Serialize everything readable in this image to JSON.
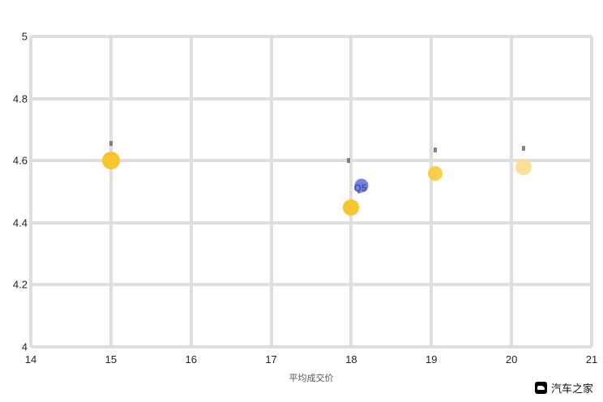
{
  "chart_data": {
    "type": "scatter",
    "title": "",
    "xlabel": "平均成交价",
    "ylabel": "",
    "xlim": [
      14,
      21
    ],
    "ylim": [
      4,
      5
    ],
    "x_ticks": [
      14,
      15,
      16,
      17,
      18,
      19,
      20,
      21
    ],
    "y_ticks": [
      5,
      4.8,
      4.6,
      4.4,
      4.2,
      4
    ],
    "grid": true,
    "legend": "none",
    "points": [
      {
        "x": 15.0,
        "y": 4.6,
        "color": "#F7C52D",
        "size": 22,
        "label": "",
        "label_color": ""
      },
      {
        "x": 18.0,
        "y": 4.45,
        "color": "#F7C52D",
        "size": 20,
        "label": "",
        "label_color": ""
      },
      {
        "x": 18.13,
        "y": 4.52,
        "color": "#7583DE",
        "size": 17,
        "label": "Q5",
        "label_color": "#4150B5"
      },
      {
        "x": 19.05,
        "y": 4.56,
        "color": "#FACD4B",
        "size": 18,
        "label": "",
        "label_color": ""
      },
      {
        "x": 20.15,
        "y": 4.58,
        "color": "#FBE095",
        "size": 20,
        "label": "",
        "label_color": ""
      }
    ],
    "annotation_marks": [
      {
        "x": 15.0,
        "y": 4.655
      },
      {
        "x": 17.97,
        "y": 4.6
      },
      {
        "x": 19.05,
        "y": 4.635
      },
      {
        "x": 20.15,
        "y": 4.64
      }
    ]
  },
  "watermark": {
    "text": "汽车之家"
  },
  "colors": {
    "grid": "#DEDEDE",
    "tick_label": "#222222",
    "axis_label": "#555555",
    "logo_bg": "#000000",
    "background": "#FFFFFF"
  }
}
